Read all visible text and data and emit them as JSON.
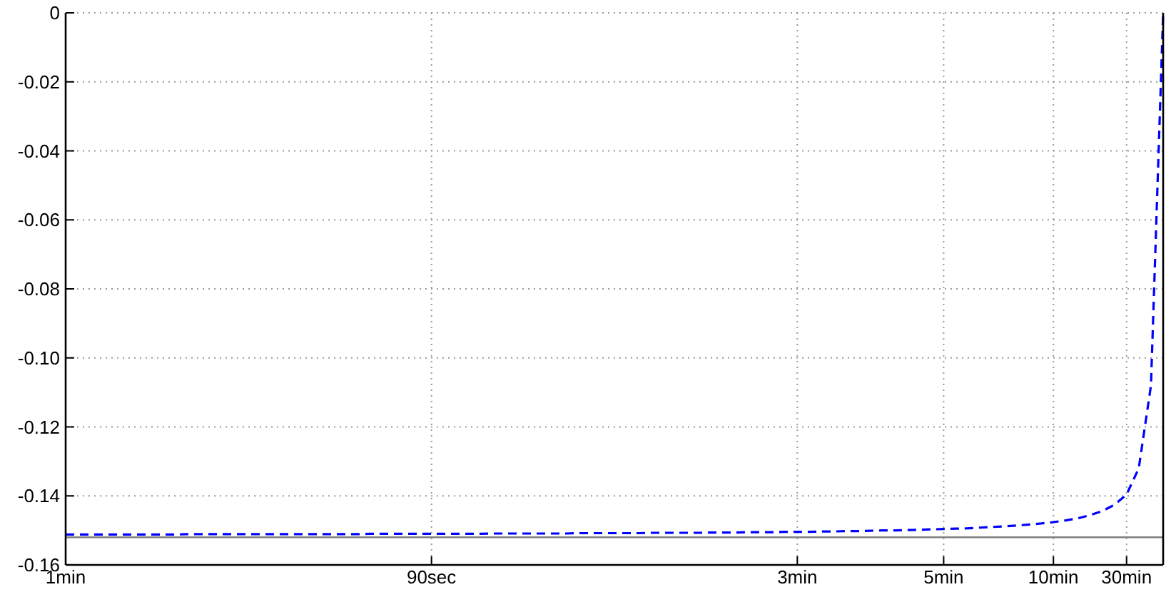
{
  "chart_data": {
    "type": "line",
    "categories": [
      "1min",
      null,
      null,
      null,
      null,
      null,
      null,
      null,
      null,
      null,
      null,
      null,
      null,
      null,
      null,
      null,
      null,
      null,
      null,
      null,
      null,
      null,
      null,
      null,
      null,
      null,
      null,
      null,
      null,
      null,
      "90sec",
      null,
      null,
      null,
      null,
      null,
      null,
      null,
      null,
      null,
      null,
      null,
      null,
      null,
      null,
      null,
      null,
      null,
      null,
      null,
      null,
      null,
      null,
      null,
      null,
      null,
      null,
      null,
      null,
      null,
      "3min",
      null,
      null,
      null,
      null,
      null,
      null,
      null,
      null,
      null,
      null,
      null,
      "5min",
      null,
      null,
      null,
      null,
      null,
      null,
      null,
      null,
      "10min",
      null,
      null,
      null,
      null,
      null,
      "30min",
      null,
      null,
      null
    ],
    "ylim": [
      -0.16,
      0
    ],
    "yticks": [
      0,
      -0.02,
      -0.04,
      -0.06,
      -0.08,
      {
        "value": -0.1,
        "label": "-0.10"
      },
      -0.12,
      -0.14,
      -0.16
    ],
    "grid": true,
    "line_style": "dashed",
    "series": [
      {
        "color": "#0000ff",
        "values": [
          -0.1512,
          -0.1512,
          -0.1512,
          -0.1512,
          -0.1512,
          -0.1512,
          -0.1512,
          -0.1512,
          -0.1512,
          -0.1512,
          -0.1511,
          -0.1511,
          -0.1511,
          -0.1511,
          -0.1511,
          -0.1511,
          -0.1511,
          -0.1511,
          -0.1511,
          -0.1511,
          -0.1511,
          -0.1511,
          -0.1511,
          -0.1511,
          -0.1511,
          -0.151,
          -0.151,
          -0.151,
          -0.151,
          -0.151,
          -0.151,
          -0.151,
          -0.151,
          -0.151,
          -0.151,
          -0.1509,
          -0.1509,
          -0.1509,
          -0.1509,
          -0.1509,
          -0.1509,
          -0.1509,
          -0.1508,
          -0.1508,
          -0.1508,
          -0.1508,
          -0.1508,
          -0.1508,
          -0.1507,
          -0.1507,
          -0.1507,
          -0.1507,
          -0.1507,
          -0.1506,
          -0.1506,
          -0.1506,
          -0.1505,
          -0.1505,
          -0.1505,
          -0.1504,
          -0.1504,
          -0.1504,
          -0.1503,
          -0.1503,
          -0.1502,
          -0.1502,
          -0.1501,
          -0.15,
          -0.15,
          -0.1499,
          -0.1498,
          -0.1497,
          -0.1496,
          -0.1495,
          -0.1494,
          -0.1492,
          -0.149,
          -0.1488,
          -0.1486,
          -0.1483,
          -0.148,
          -0.1476,
          -0.1471,
          -0.1465,
          -0.1456,
          -0.1444,
          -0.1426,
          -0.1396,
          -0.132,
          -0.108,
          0
        ]
      }
    ],
    "ref_lines": [
      {
        "axis": "y",
        "value": -0.152,
        "color": "#808080",
        "line_style": "solid"
      }
    ]
  }
}
